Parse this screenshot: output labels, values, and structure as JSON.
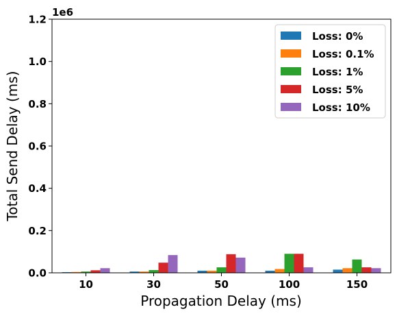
{
  "chart_data": {
    "type": "bar",
    "xlabel": "Propagation Delay (ms)",
    "ylabel": "Total Send Delay (ms)",
    "offset_label": "1e6",
    "ylim": [
      0,
      1200000
    ],
    "yticks": [
      0,
      200000,
      400000,
      600000,
      800000,
      1000000,
      1200000
    ],
    "ytick_labels": [
      "0.0",
      "0.2",
      "0.4",
      "0.6",
      "0.8",
      "1.0",
      "1.2"
    ],
    "categories": [
      "10",
      "30",
      "50",
      "100",
      "150"
    ],
    "legend_position": "top-right",
    "grid": false,
    "series": [
      {
        "name": "Loss: 0%",
        "color": "#1f77b4",
        "values": [
          3000,
          6000,
          10000,
          10000,
          15000
        ]
      },
      {
        "name": "Loss: 0.1%",
        "color": "#ff7f0e",
        "values": [
          4000,
          6000,
          10000,
          18000,
          22000
        ]
      },
      {
        "name": "Loss: 1%",
        "color": "#2ca02c",
        "values": [
          6000,
          13000,
          26000,
          90000,
          63000
        ]
      },
      {
        "name": "Loss: 5%",
        "color": "#d62728",
        "values": [
          12000,
          48000,
          88000,
          90000,
          26000
        ]
      },
      {
        "name": "Loss: 10%",
        "color": "#9467bd",
        "values": [
          22000,
          84000,
          72000,
          26000,
          22000
        ]
      }
    ]
  }
}
